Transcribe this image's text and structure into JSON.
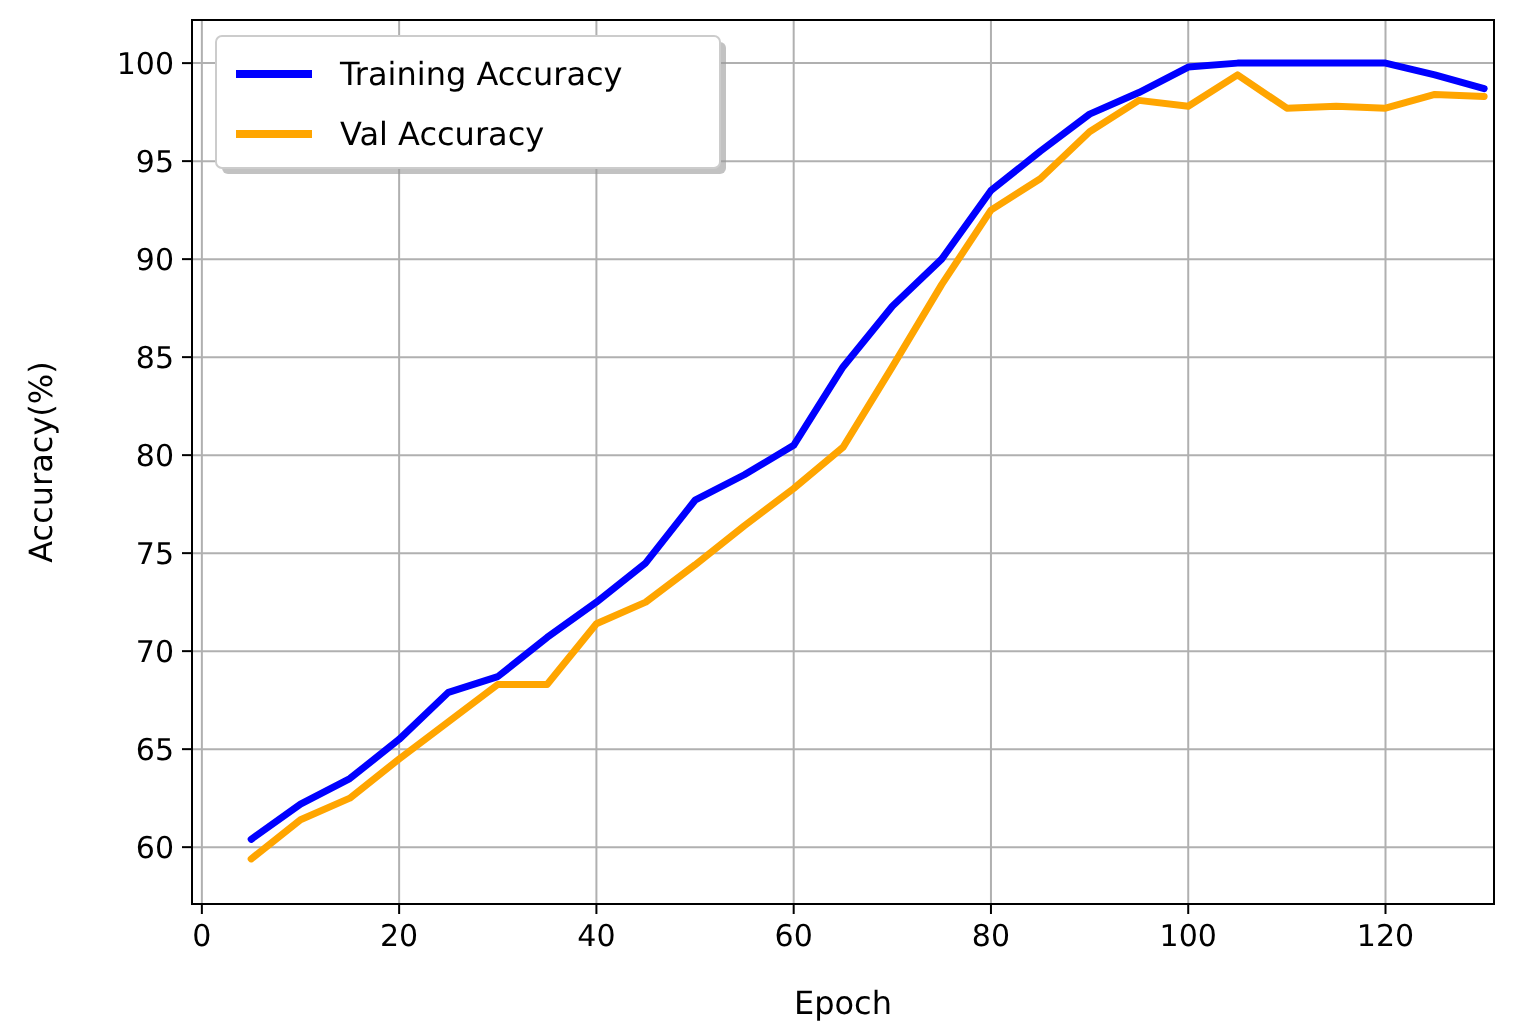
{
  "chart_data": {
    "type": "line",
    "xlabel": "Epoch",
    "ylabel": "Accuracy(%)",
    "x": [
      5,
      10,
      15,
      20,
      25,
      30,
      35,
      40,
      45,
      50,
      55,
      60,
      65,
      70,
      75,
      80,
      85,
      90,
      95,
      100,
      105,
      110,
      115,
      120,
      125,
      130
    ],
    "series": [
      {
        "name": "Training Accuracy",
        "color": "#0000ff",
        "values": [
          60.4,
          62.2,
          63.5,
          65.5,
          67.9,
          68.7,
          70.7,
          72.5,
          74.5,
          77.7,
          79,
          80.5,
          84.5,
          87.6,
          90,
          93.5,
          95.5,
          97.4,
          98.5,
          99.8,
          100,
          100,
          100,
          100,
          99.4,
          98.7
        ]
      },
      {
        "name": "Val Accuracy",
        "color": "#ffa500",
        "values": [
          59.4,
          61.4,
          62.5,
          64.5,
          66.4,
          68.3,
          68.3,
          71.4,
          72.5,
          74.4,
          76.4,
          78.3,
          80.4,
          84.5,
          88.7,
          92.5,
          94.1,
          96.5,
          98.1,
          97.8,
          99.4,
          97.7,
          97.8,
          97.7,
          98.4,
          98.3
        ]
      }
    ],
    "xlim": [
      -1,
      131
    ],
    "ylim": [
      57.1,
      102.2
    ],
    "xticks": [
      0,
      20,
      40,
      60,
      80,
      100,
      120
    ],
    "yticks": [
      60,
      65,
      70,
      75,
      80,
      85,
      90,
      95,
      100
    ],
    "grid": true,
    "legend": "top left",
    "line_style": "solid",
    "marker": "none"
  }
}
